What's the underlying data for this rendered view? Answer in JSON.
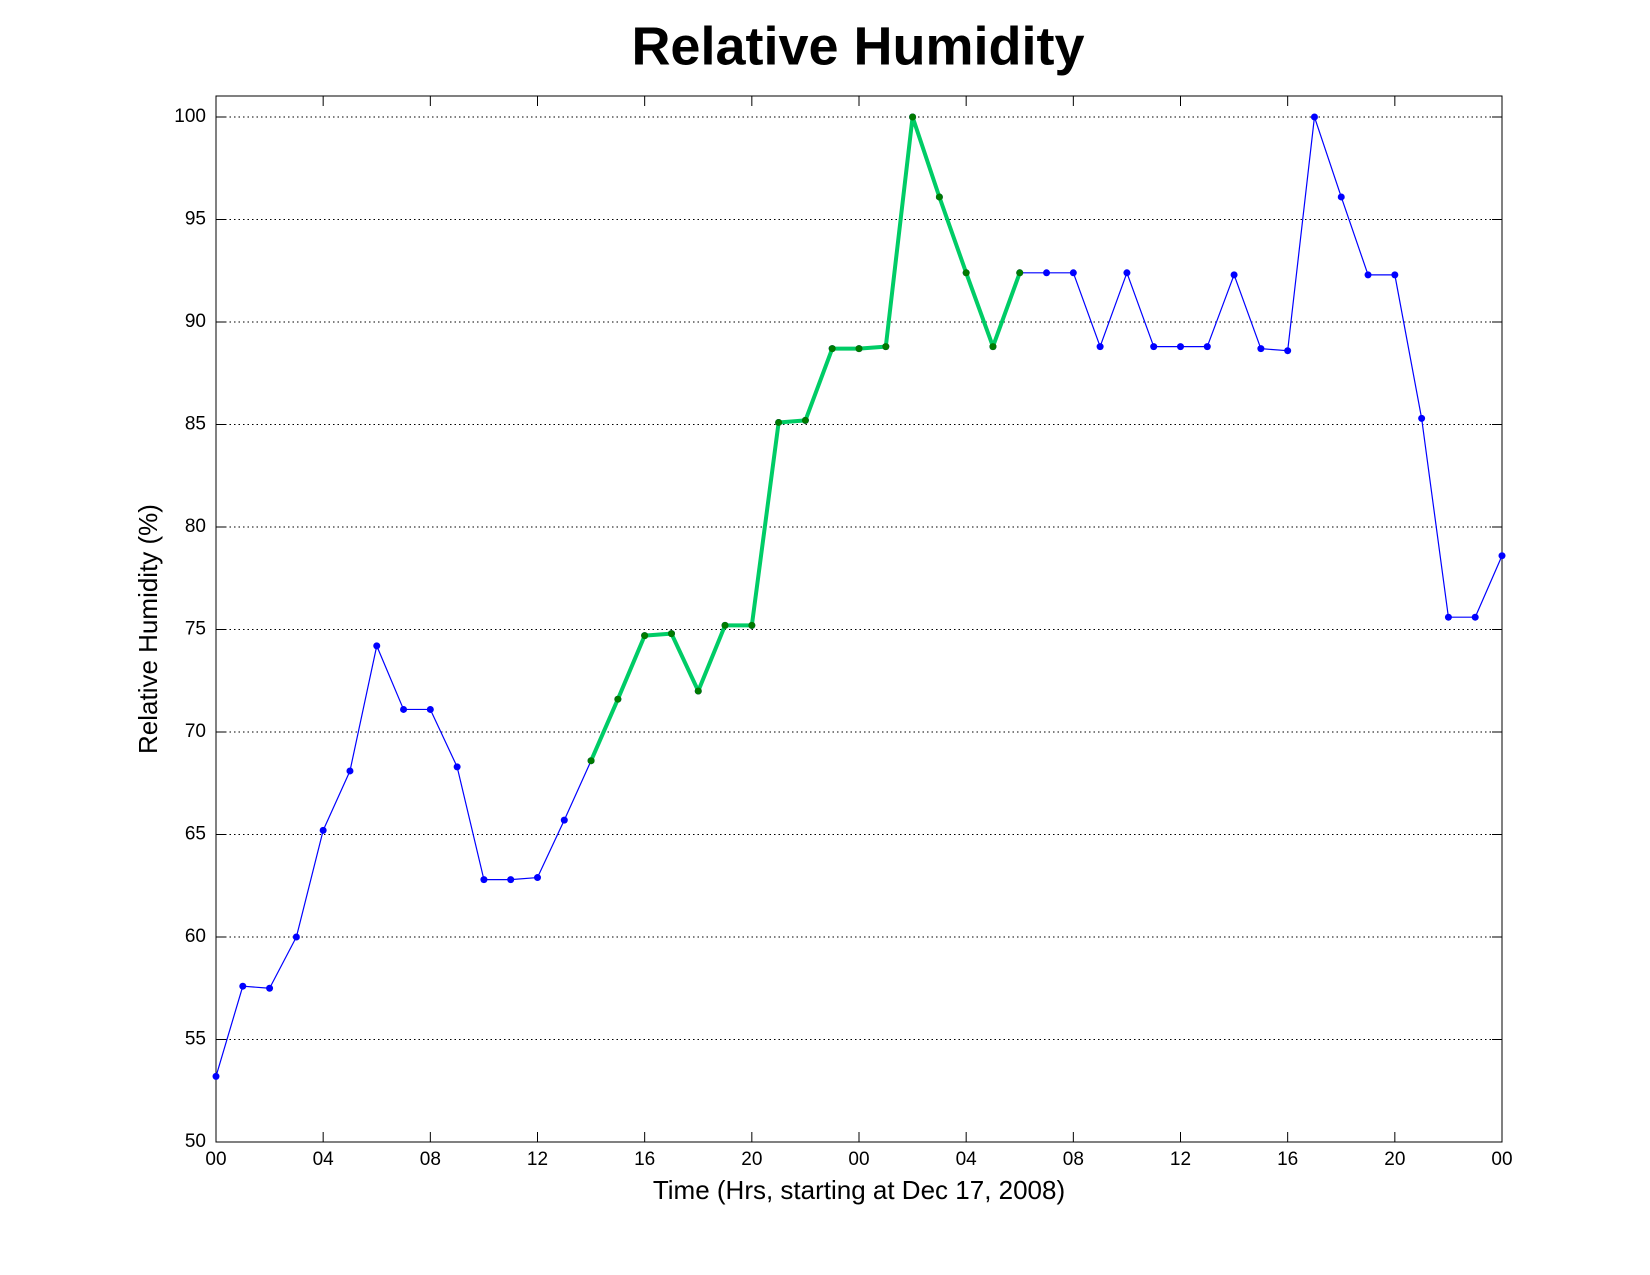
{
  "chart_data": {
    "type": "line",
    "title": "Relative Humidity",
    "xlabel": "Time (Hrs, starting at Dec 17, 2008)",
    "ylabel": "Relative Humidity (%)",
    "xlim": [
      0,
      48
    ],
    "ylim": [
      50,
      100
    ],
    "xticks": [
      {
        "value": 0,
        "label": "00"
      },
      {
        "value": 4,
        "label": "04"
      },
      {
        "value": 8,
        "label": "08"
      },
      {
        "value": 12,
        "label": "12"
      },
      {
        "value": 16,
        "label": "16"
      },
      {
        "value": 20,
        "label": "20"
      },
      {
        "value": 24,
        "label": "00"
      },
      {
        "value": 28,
        "label": "04"
      },
      {
        "value": 32,
        "label": "08"
      },
      {
        "value": 36,
        "label": "12"
      },
      {
        "value": 40,
        "label": "16"
      },
      {
        "value": 44,
        "label": "20"
      },
      {
        "value": 48,
        "label": "00"
      }
    ],
    "yticks": [
      50,
      55,
      60,
      65,
      70,
      75,
      80,
      85,
      90,
      95,
      100
    ],
    "grid": "y",
    "series": [
      {
        "color": "#0000ff",
        "marker_color": "#0000ff",
        "line_width": 1.2,
        "x": [
          0,
          1,
          2,
          3,
          4,
          5,
          6,
          7,
          8,
          9,
          10,
          11,
          12,
          13,
          14,
          15,
          16,
          17,
          18,
          19,
          20,
          21,
          22,
          23,
          24,
          25,
          26,
          27,
          28,
          29,
          30,
          31,
          32,
          33,
          34,
          35,
          36,
          37,
          38,
          39,
          40,
          41,
          42,
          43,
          44,
          45,
          46,
          47,
          48
        ],
        "values": [
          53.2,
          57.6,
          57.5,
          60.0,
          65.2,
          68.1,
          74.2,
          71.1,
          71.1,
          68.3,
          62.8,
          62.8,
          62.9,
          65.7,
          68.6,
          71.6,
          74.7,
          74.8,
          72.0,
          75.2,
          75.2,
          85.1,
          85.2,
          88.7,
          88.7,
          88.8,
          100,
          96.1,
          92.4,
          88.8,
          92.4,
          92.4,
          92.4,
          88.8,
          92.4,
          88.8,
          88.8,
          88.8,
          92.3,
          88.7,
          88.6,
          100,
          96.1,
          92.3,
          92.3,
          85.3,
          75.6,
          75.6,
          78.6
        ]
      },
      {
        "color": "#00cc66",
        "marker_color": "#007a00",
        "line_width": 4,
        "x": [
          14,
          15,
          16,
          17,
          18,
          19,
          20,
          21,
          22,
          23,
          24,
          25,
          26,
          27,
          28,
          29,
          30
        ],
        "values": [
          68.6,
          71.6,
          74.7,
          74.8,
          72.0,
          75.2,
          75.2,
          85.1,
          85.2,
          88.7,
          88.7,
          88.8,
          100,
          96.1,
          92.4,
          88.8,
          92.4
        ]
      }
    ]
  }
}
